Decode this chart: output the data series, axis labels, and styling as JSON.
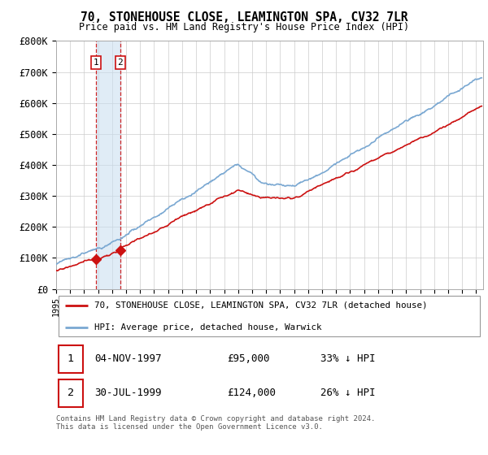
{
  "title": "70, STONEHOUSE CLOSE, LEAMINGTON SPA, CV32 7LR",
  "subtitle": "Price paid vs. HM Land Registry's House Price Index (HPI)",
  "ylabel_ticks": [
    "£0",
    "£100K",
    "£200K",
    "£300K",
    "£400K",
    "£500K",
    "£600K",
    "£700K",
    "£800K"
  ],
  "ytick_values": [
    0,
    100000,
    200000,
    300000,
    400000,
    500000,
    600000,
    700000,
    800000
  ],
  "ylim": [
    0,
    800000
  ],
  "xlim_start": 1995.0,
  "xlim_end": 2025.5,
  "xticks": [
    1995,
    1996,
    1997,
    1998,
    1999,
    2000,
    2001,
    2002,
    2003,
    2004,
    2005,
    2006,
    2007,
    2008,
    2009,
    2010,
    2011,
    2012,
    2013,
    2014,
    2015,
    2016,
    2017,
    2018,
    2019,
    2020,
    2021,
    2022,
    2023,
    2024,
    2025
  ],
  "hpi_color": "#7aa8d2",
  "price_color": "#cc1111",
  "purchase_marker_color": "#cc1111",
  "vline_color": "#cc1111",
  "shade_color": "#c8ddf0",
  "purchase1_x": 1997.843,
  "purchase1_y": 95000,
  "purchase2_x": 1999.578,
  "purchase2_y": 124000,
  "legend_entry1": "70, STONEHOUSE CLOSE, LEAMINGTON SPA, CV32 7LR (detached house)",
  "legend_entry2": "HPI: Average price, detached house, Warwick",
  "table_row1_num": "1",
  "table_row1_date": "04-NOV-1997",
  "table_row1_price": "£95,000",
  "table_row1_hpi": "33% ↓ HPI",
  "table_row2_num": "2",
  "table_row2_date": "30-JUL-1999",
  "table_row2_price": "£124,000",
  "table_row2_hpi": "26% ↓ HPI",
  "footnote": "Contains HM Land Registry data © Crown copyright and database right 2024.\nThis data is licensed under the Open Government Licence v3.0.",
  "background_color": "#ffffff",
  "grid_color": "#cccccc"
}
